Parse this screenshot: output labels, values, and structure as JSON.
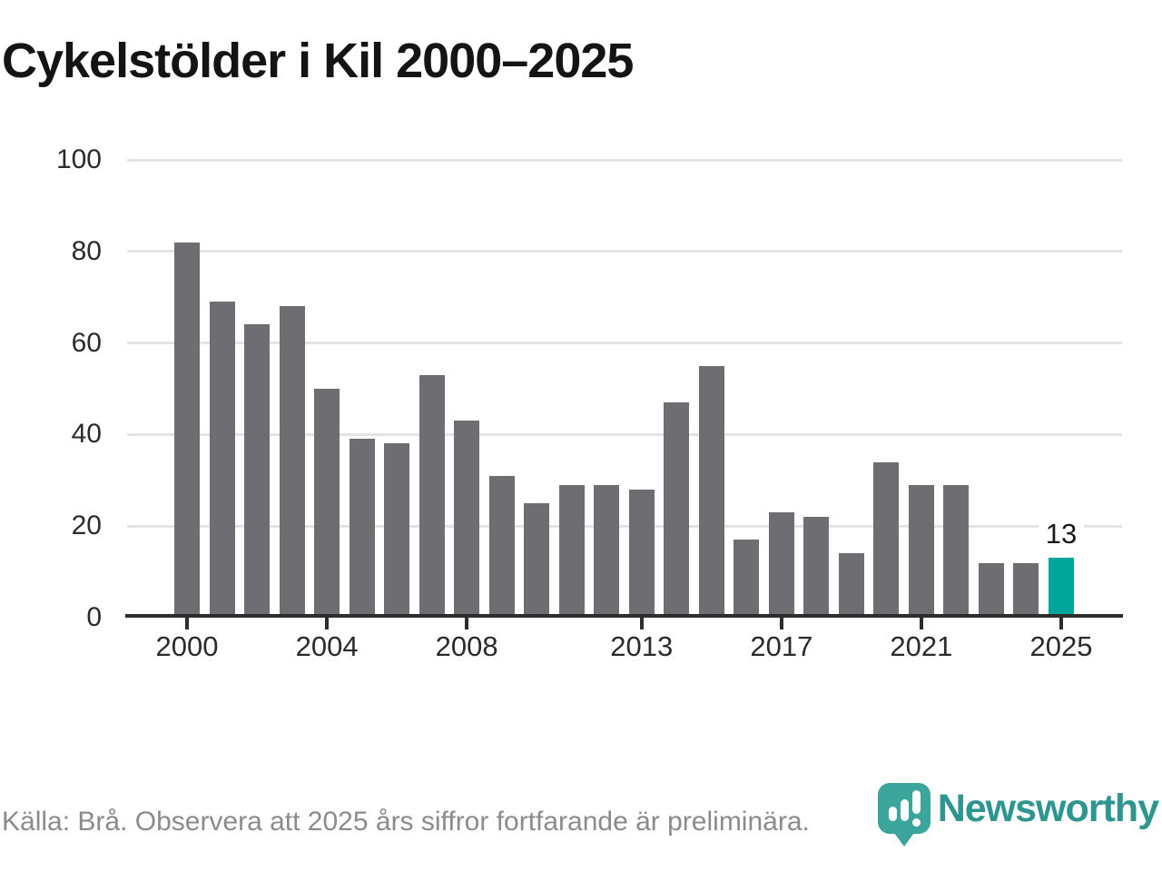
{
  "title": "Cykelstölder i Kil 2000–2025",
  "chart_data": {
    "type": "bar",
    "title": "Cykelstölder i Kil 2000–2025",
    "xlabel": "",
    "ylabel": "",
    "categories": [
      "2000",
      "2001",
      "2002",
      "2003",
      "2004",
      "2005",
      "2006",
      "2007",
      "2008",
      "2009",
      "2010",
      "2011",
      "2012",
      "2013",
      "2014",
      "2015",
      "2016",
      "2017",
      "2018",
      "2019",
      "2020",
      "2021",
      "2022",
      "2023",
      "2024",
      "2025"
    ],
    "values": [
      82,
      69,
      64,
      68,
      50,
      39,
      38,
      53,
      43,
      31,
      25,
      29,
      29,
      28,
      47,
      55,
      17,
      23,
      22,
      14,
      34,
      29,
      29,
      12,
      12,
      13
    ],
    "ylim": [
      0,
      100
    ],
    "yticks": [
      0,
      20,
      40,
      60,
      80,
      100
    ],
    "xtick_indices": [
      0,
      4,
      8,
      13,
      17,
      21,
      25
    ],
    "xtick_labels": [
      "2000",
      "2004",
      "2008",
      "2013",
      "2017",
      "2021",
      "2025"
    ],
    "grid": "horizontal",
    "legend": "none",
    "bar_color": "#6d6d72",
    "gridline_color": "#e4e4e4",
    "axis_color": "#2d2d2d",
    "highlight": {
      "category": "2025",
      "index": 25,
      "value": 13,
      "label": "13",
      "color": "#00a69b"
    }
  },
  "footer": {
    "source_text": "Källa: Brå. Observera att 2025 års siffror fortfarande är preliminära.",
    "logo_text": "Newsworthy",
    "logo_color": "#2e968f",
    "logo_icon": "newsworthy-pin-bar-chart-icon",
    "logo_icon_color": "#3ba59c"
  }
}
